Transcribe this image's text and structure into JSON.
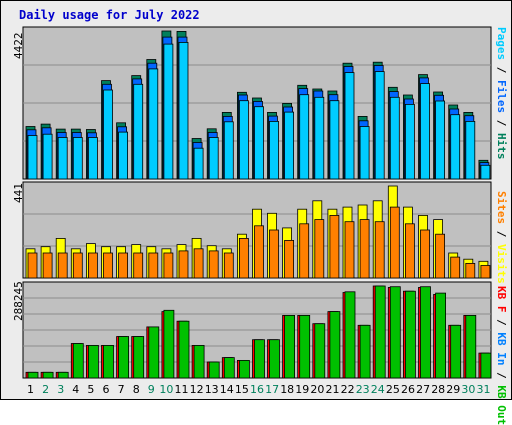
{
  "title": "Daily usage for July 2022",
  "colors": {
    "frame_bg": "#ececec",
    "plot_bg": "#c0c0c0",
    "grid": "#8c8c8c",
    "title": "#0000cc",
    "pages": "#00ccff",
    "files": "#0066ff",
    "hits": "#00805c",
    "visits": "#ffff00",
    "sites": "#ff8000",
    "kb_in": "#0080ff",
    "kb_out": "#00c000",
    "kb_f": "#ff0000",
    "weekend_day": "#00805c",
    "weekday_day": "#000000"
  },
  "chart_data": [
    {
      "type": "bar",
      "panel": "top",
      "y_max_label": "4422",
      "ylim": [
        0,
        4422
      ],
      "categories": [
        "1",
        "2",
        "3",
        "4",
        "5",
        "6",
        "7",
        "8",
        "9",
        "10",
        "11",
        "12",
        "13",
        "14",
        "15",
        "16",
        "17",
        "18",
        "19",
        "20",
        "21",
        "22",
        "23",
        "24",
        "25",
        "26",
        "27",
        "28",
        "29",
        "30",
        "31"
      ],
      "legend": [
        "Pages",
        "Files",
        "Hits"
      ],
      "series": [
        {
          "name": "Hits",
          "values": [
            1570,
            1640,
            1490,
            1490,
            1480,
            2940,
            1680,
            3090,
            3570,
            4422,
            4410,
            1210,
            1500,
            1990,
            2590,
            2420,
            1990,
            2260,
            2800,
            2690,
            2630,
            3460,
            1870,
            3490,
            2740,
            2510,
            3120,
            2600,
            2210,
            1990,
            560
          ]
        },
        {
          "name": "Files",
          "values": [
            1470,
            1530,
            1390,
            1390,
            1380,
            2830,
            1560,
            2990,
            3460,
            4240,
            4240,
            1090,
            1390,
            1870,
            2510,
            2320,
            1880,
            2150,
            2700,
            2630,
            2520,
            3360,
            1740,
            3390,
            2610,
            2390,
            3020,
            2500,
            2090,
            1890,
            490
          ]
        },
        {
          "name": "Pages",
          "values": [
            1300,
            1340,
            1240,
            1240,
            1240,
            2660,
            1400,
            2830,
            3290,
            4030,
            4080,
            920,
            1240,
            1710,
            2340,
            2160,
            1720,
            2000,
            2520,
            2440,
            2340,
            3180,
            1570,
            3210,
            2440,
            2230,
            2850,
            2330,
            1920,
            1720,
            410
          ]
        }
      ]
    },
    {
      "type": "bar",
      "panel": "middle",
      "y_max_label": "441",
      "ylim": [
        0,
        441
      ],
      "categories": [
        "1",
        "2",
        "3",
        "4",
        "5",
        "6",
        "7",
        "8",
        "9",
        "10",
        "11",
        "12",
        "13",
        "14",
        "15",
        "16",
        "17",
        "18",
        "19",
        "20",
        "21",
        "22",
        "23",
        "24",
        "25",
        "26",
        "27",
        "28",
        "29",
        "30",
        "31"
      ],
      "legend": [
        "Sites",
        "Visits"
      ],
      "series": [
        {
          "name": "Visits",
          "values": [
            140,
            150,
            190,
            140,
            165,
            150,
            150,
            160,
            150,
            140,
            160,
            190,
            155,
            140,
            210,
            330,
            310,
            240,
            330,
            370,
            330,
            340,
            350,
            370,
            441,
            340,
            300,
            280,
            120,
            90,
            80
          ]
        },
        {
          "name": "Sites",
          "values": [
            120,
            120,
            120,
            120,
            120,
            120,
            120,
            120,
            120,
            120,
            130,
            140,
            130,
            120,
            190,
            250,
            230,
            180,
            260,
            280,
            300,
            270,
            280,
            270,
            340,
            260,
            230,
            210,
            100,
            70,
            60
          ]
        }
      ]
    },
    {
      "type": "bar",
      "panel": "bottom",
      "y_max_label": "288245",
      "ylim": [
        0,
        288245
      ],
      "categories": [
        "1",
        "2",
        "3",
        "4",
        "5",
        "6",
        "7",
        "8",
        "9",
        "10",
        "11",
        "12",
        "13",
        "14",
        "15",
        "16",
        "17",
        "18",
        "19",
        "20",
        "21",
        "22",
        "23",
        "24",
        "25",
        "26",
        "27",
        "28",
        "29",
        "30",
        "31"
      ],
      "legend": [
        "KB F",
        "KB In",
        "KB Out"
      ],
      "series": [
        {
          "name": "KB F",
          "values": [
            18000,
            18000,
            18000,
            108000,
            102000,
            102000,
            130000,
            130000,
            160000,
            208000,
            178000,
            102000,
            50000,
            64000,
            55000,
            120000,
            120000,
            196000,
            196000,
            170000,
            208000,
            268000,
            165000,
            288245,
            284000,
            272000,
            284000,
            262000,
            165000,
            196000,
            78000
          ]
        },
        {
          "name": "KB Out",
          "values": [
            18000,
            18000,
            18000,
            108000,
            102000,
            102000,
            130000,
            130000,
            160000,
            212000,
            178000,
            102000,
            50000,
            64000,
            55000,
            120000,
            120000,
            196000,
            196000,
            170000,
            208000,
            270000,
            165000,
            288245,
            286000,
            272000,
            286000,
            266000,
            165000,
            196000,
            78000
          ]
        }
      ]
    }
  ],
  "day_labels": [
    "1",
    "2",
    "3",
    "4",
    "5",
    "6",
    "7",
    "8",
    "9",
    "10",
    "11",
    "12",
    "13",
    "14",
    "15",
    "16",
    "17",
    "18",
    "19",
    "20",
    "21",
    "22",
    "23",
    "24",
    "25",
    "26",
    "27",
    "28",
    "29",
    "30",
    "31"
  ],
  "weekend_days": [
    "2",
    "3",
    "9",
    "10",
    "16",
    "17",
    "23",
    "24",
    "30",
    "31"
  ]
}
